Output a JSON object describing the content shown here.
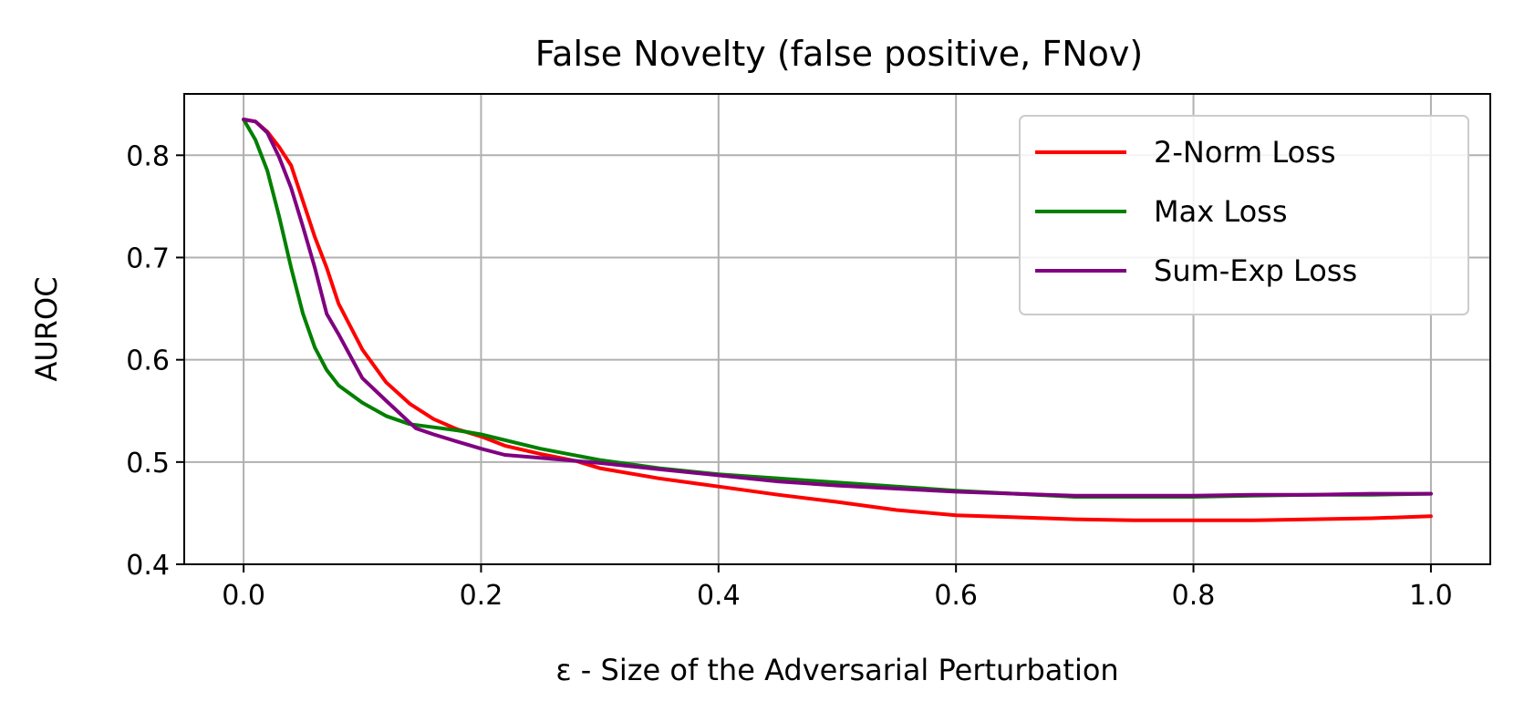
{
  "chart_data": {
    "type": "line",
    "title": "False Novelty (false positive, FNov)",
    "xlabel": "ε - Size of the Adversarial Perturbation",
    "ylabel": "AUROC",
    "xlim": [
      -0.05,
      1.05
    ],
    "ylim": [
      0.4,
      0.86
    ],
    "xticks": [
      0.0,
      0.2,
      0.4,
      0.6,
      0.8,
      1.0
    ],
    "xtick_labels": [
      "0.0",
      "0.2",
      "0.4",
      "0.6",
      "0.8",
      "1.0"
    ],
    "yticks": [
      0.4,
      0.5,
      0.6,
      0.7,
      0.8
    ],
    "ytick_labels": [
      "0.4",
      "0.5",
      "0.6",
      "0.7",
      "0.8"
    ],
    "grid": true,
    "legend_position": "top-right",
    "series": [
      {
        "name": "2-Norm Loss",
        "color": "#ff0000",
        "points": [
          [
            0.0,
            0.835
          ],
          [
            0.01,
            0.833
          ],
          [
            0.02,
            0.823
          ],
          [
            0.03,
            0.808
          ],
          [
            0.04,
            0.79
          ],
          [
            0.05,
            0.755
          ],
          [
            0.06,
            0.72
          ],
          [
            0.07,
            0.69
          ],
          [
            0.08,
            0.655
          ],
          [
            0.1,
            0.61
          ],
          [
            0.12,
            0.578
          ],
          [
            0.14,
            0.557
          ],
          [
            0.16,
            0.542
          ],
          [
            0.18,
            0.532
          ],
          [
            0.2,
            0.525
          ],
          [
            0.22,
            0.516
          ],
          [
            0.25,
            0.508
          ],
          [
            0.28,
            0.501
          ],
          [
            0.3,
            0.494
          ],
          [
            0.35,
            0.484
          ],
          [
            0.4,
            0.476
          ],
          [
            0.45,
            0.468
          ],
          [
            0.5,
            0.461
          ],
          [
            0.55,
            0.453
          ],
          [
            0.6,
            0.448
          ],
          [
            0.65,
            0.446
          ],
          [
            0.7,
            0.444
          ],
          [
            0.75,
            0.443
          ],
          [
            0.8,
            0.443
          ],
          [
            0.85,
            0.443
          ],
          [
            0.9,
            0.444
          ],
          [
            0.95,
            0.445
          ],
          [
            1.0,
            0.447
          ]
        ]
      },
      {
        "name": "Max Loss",
        "color": "#008000",
        "points": [
          [
            0.0,
            0.835
          ],
          [
            0.01,
            0.815
          ],
          [
            0.02,
            0.785
          ],
          [
            0.03,
            0.74
          ],
          [
            0.04,
            0.69
          ],
          [
            0.05,
            0.645
          ],
          [
            0.06,
            0.612
          ],
          [
            0.07,
            0.59
          ],
          [
            0.08,
            0.575
          ],
          [
            0.1,
            0.558
          ],
          [
            0.12,
            0.545
          ],
          [
            0.14,
            0.537
          ],
          [
            0.16,
            0.534
          ],
          [
            0.18,
            0.531
          ],
          [
            0.2,
            0.527
          ],
          [
            0.25,
            0.513
          ],
          [
            0.3,
            0.502
          ],
          [
            0.35,
            0.494
          ],
          [
            0.4,
            0.488
          ],
          [
            0.45,
            0.484
          ],
          [
            0.5,
            0.48
          ],
          [
            0.55,
            0.476
          ],
          [
            0.6,
            0.472
          ],
          [
            0.65,
            0.469
          ],
          [
            0.7,
            0.466
          ],
          [
            0.75,
            0.466
          ],
          [
            0.8,
            0.466
          ],
          [
            0.85,
            0.467
          ],
          [
            0.9,
            0.468
          ],
          [
            0.95,
            0.468
          ],
          [
            1.0,
            0.469
          ]
        ]
      },
      {
        "name": "Sum-Exp Loss",
        "color": "#800080",
        "points": [
          [
            0.0,
            0.835
          ],
          [
            0.01,
            0.833
          ],
          [
            0.02,
            0.822
          ],
          [
            0.03,
            0.798
          ],
          [
            0.04,
            0.768
          ],
          [
            0.05,
            0.73
          ],
          [
            0.06,
            0.69
          ],
          [
            0.07,
            0.645
          ],
          [
            0.08,
            0.625
          ],
          [
            0.1,
            0.582
          ],
          [
            0.12,
            0.56
          ],
          [
            0.145,
            0.533
          ],
          [
            0.16,
            0.527
          ],
          [
            0.18,
            0.52
          ],
          [
            0.2,
            0.513
          ],
          [
            0.22,
            0.507
          ],
          [
            0.25,
            0.504
          ],
          [
            0.3,
            0.499
          ],
          [
            0.35,
            0.493
          ],
          [
            0.4,
            0.487
          ],
          [
            0.45,
            0.481
          ],
          [
            0.5,
            0.477
          ],
          [
            0.55,
            0.474
          ],
          [
            0.6,
            0.471
          ],
          [
            0.65,
            0.469
          ],
          [
            0.7,
            0.467
          ],
          [
            0.75,
            0.467
          ],
          [
            0.8,
            0.467
          ],
          [
            0.85,
            0.468
          ],
          [
            0.9,
            0.468
          ],
          [
            0.95,
            0.469
          ],
          [
            1.0,
            0.469
          ]
        ]
      }
    ]
  }
}
